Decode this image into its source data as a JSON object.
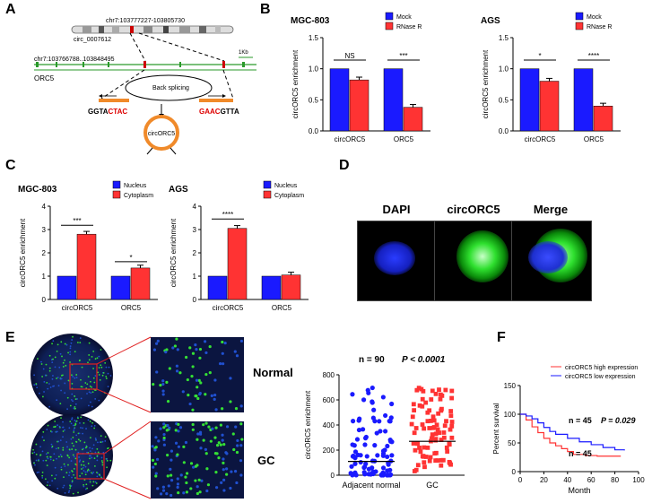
{
  "panels": {
    "A": {
      "letter": "A",
      "chr_top": "chr7:103777227-103805730",
      "circ_id": "circ_0007612",
      "chr_bottom": "chr7:103766788..103848495",
      "gene": "ORC5",
      "scale": "1Kb",
      "back_splicing": "Back splicing",
      "seq_left_black": "GGTA",
      "seq_left_red": "CTAC",
      "seq_right_red": "GAAC",
      "seq_right_black": "GTTA",
      "circle_label": "circORC5"
    },
    "B": {
      "letter": "B"
    },
    "C": {
      "letter": "C"
    },
    "D": {
      "letter": "D",
      "labels": [
        "DAPI",
        "circORC5",
        "Merge"
      ]
    },
    "E": {
      "letter": "E",
      "normal_label": "Normal",
      "gc_label": "GC"
    },
    "F": {
      "letter": "F"
    }
  },
  "chart_data": [
    {
      "id": "B-MGC803",
      "type": "bar",
      "title": "MGC-803",
      "ylabel": "circORC5 enrichment",
      "ylim": [
        0,
        1.5
      ],
      "yticks": [
        "0.0",
        "0.5",
        "1.0",
        "1.5"
      ],
      "categories": [
        "circORC5",
        "ORC5"
      ],
      "series": [
        {
          "name": "Mock",
          "color": "#1a1aff",
          "values": [
            1.0,
            1.0
          ]
        },
        {
          "name": "RNase R",
          "color": "#ff3333",
          "values": [
            0.82,
            0.38
          ]
        }
      ],
      "significance": [
        "NS",
        "***"
      ],
      "legend": "top-right"
    },
    {
      "id": "B-AGS",
      "type": "bar",
      "title": "AGS",
      "ylabel": "circORC5 enrichment",
      "ylim": [
        0,
        1.5
      ],
      "yticks": [
        "0.0",
        "0.5",
        "1.0",
        "1.5"
      ],
      "categories": [
        "circORC5",
        "ORC5"
      ],
      "series": [
        {
          "name": "Mock",
          "color": "#1a1aff",
          "values": [
            1.0,
            1.0
          ]
        },
        {
          "name": "RNase R",
          "color": "#ff3333",
          "values": [
            0.8,
            0.4
          ]
        }
      ],
      "significance": [
        "*",
        "****"
      ],
      "legend": "top-right"
    },
    {
      "id": "C-MGC803",
      "type": "bar",
      "title": "MGC-803",
      "ylabel": "circORC5 enrichment",
      "ylim": [
        0,
        4
      ],
      "yticks": [
        "0",
        "1",
        "2",
        "3",
        "4"
      ],
      "categories": [
        "circORC5",
        "ORC5"
      ],
      "series": [
        {
          "name": "Nucleus",
          "color": "#1a1aff",
          "values": [
            1.0,
            1.0
          ]
        },
        {
          "name": "Cytoplasm",
          "color": "#ff3333",
          "values": [
            2.8,
            1.35
          ]
        }
      ],
      "significance": [
        "***",
        "*"
      ],
      "legend": "top-right"
    },
    {
      "id": "C-AGS",
      "type": "bar",
      "title": "AGS",
      "ylabel": "circORC5 enrichment",
      "ylim": [
        0,
        4
      ],
      "yticks": [
        "0",
        "1",
        "2",
        "3",
        "4"
      ],
      "categories": [
        "circORC5",
        "ORC5"
      ],
      "series": [
        {
          "name": "Nucleus",
          "color": "#1a1aff",
          "values": [
            1.0,
            1.0
          ]
        },
        {
          "name": "Cytoplasm",
          "color": "#ff3333",
          "values": [
            3.05,
            1.05
          ]
        }
      ],
      "significance": [
        "****",
        ""
      ],
      "legend": "top-right"
    },
    {
      "id": "E-scatter",
      "type": "scatter",
      "ylabel": "circORC5 enrichment",
      "ylim": [
        0,
        800
      ],
      "yticks": [
        "0",
        "200",
        "400",
        "600",
        "800"
      ],
      "categories": [
        "Adjacent normal",
        "GC"
      ],
      "annotation_n": "n = 90",
      "annotation_p": "P < 0.0001",
      "series": [
        {
          "name": "Adjacent normal",
          "color": "#1a1aff",
          "median": 110
        },
        {
          "name": "GC",
          "color": "#ff3333",
          "median": 270
        }
      ]
    },
    {
      "id": "F-km",
      "type": "line",
      "xlabel": "Month",
      "ylabel": "Percent survival",
      "xlim": [
        0,
        100
      ],
      "ylim": [
        0,
        150
      ],
      "xticks": [
        "0",
        "20",
        "40",
        "60",
        "80",
        "100"
      ],
      "yticks": [
        "0",
        "50",
        "100",
        "150"
      ],
      "annotation_top": "n = 45",
      "annotation_p": "P = 0.029",
      "annotation_bottom": "n = 45",
      "series": [
        {
          "name": "circORC5 high expression",
          "color": "#ff3333",
          "x": [
            0,
            5,
            10,
            15,
            20,
            25,
            30,
            35,
            40,
            45,
            55,
            65,
            75,
            85
          ],
          "y": [
            100,
            90,
            78,
            68,
            58,
            50,
            45,
            40,
            35,
            30,
            28,
            27,
            27,
            27
          ]
        },
        {
          "name": "circORC5 low expression",
          "color": "#1a1aff",
          "x": [
            0,
            5,
            10,
            15,
            20,
            25,
            30,
            40,
            50,
            60,
            70,
            80,
            85,
            88
          ],
          "y": [
            100,
            97,
            92,
            85,
            77,
            70,
            65,
            58,
            52,
            47,
            42,
            38,
            38,
            37
          ]
        }
      ]
    }
  ]
}
